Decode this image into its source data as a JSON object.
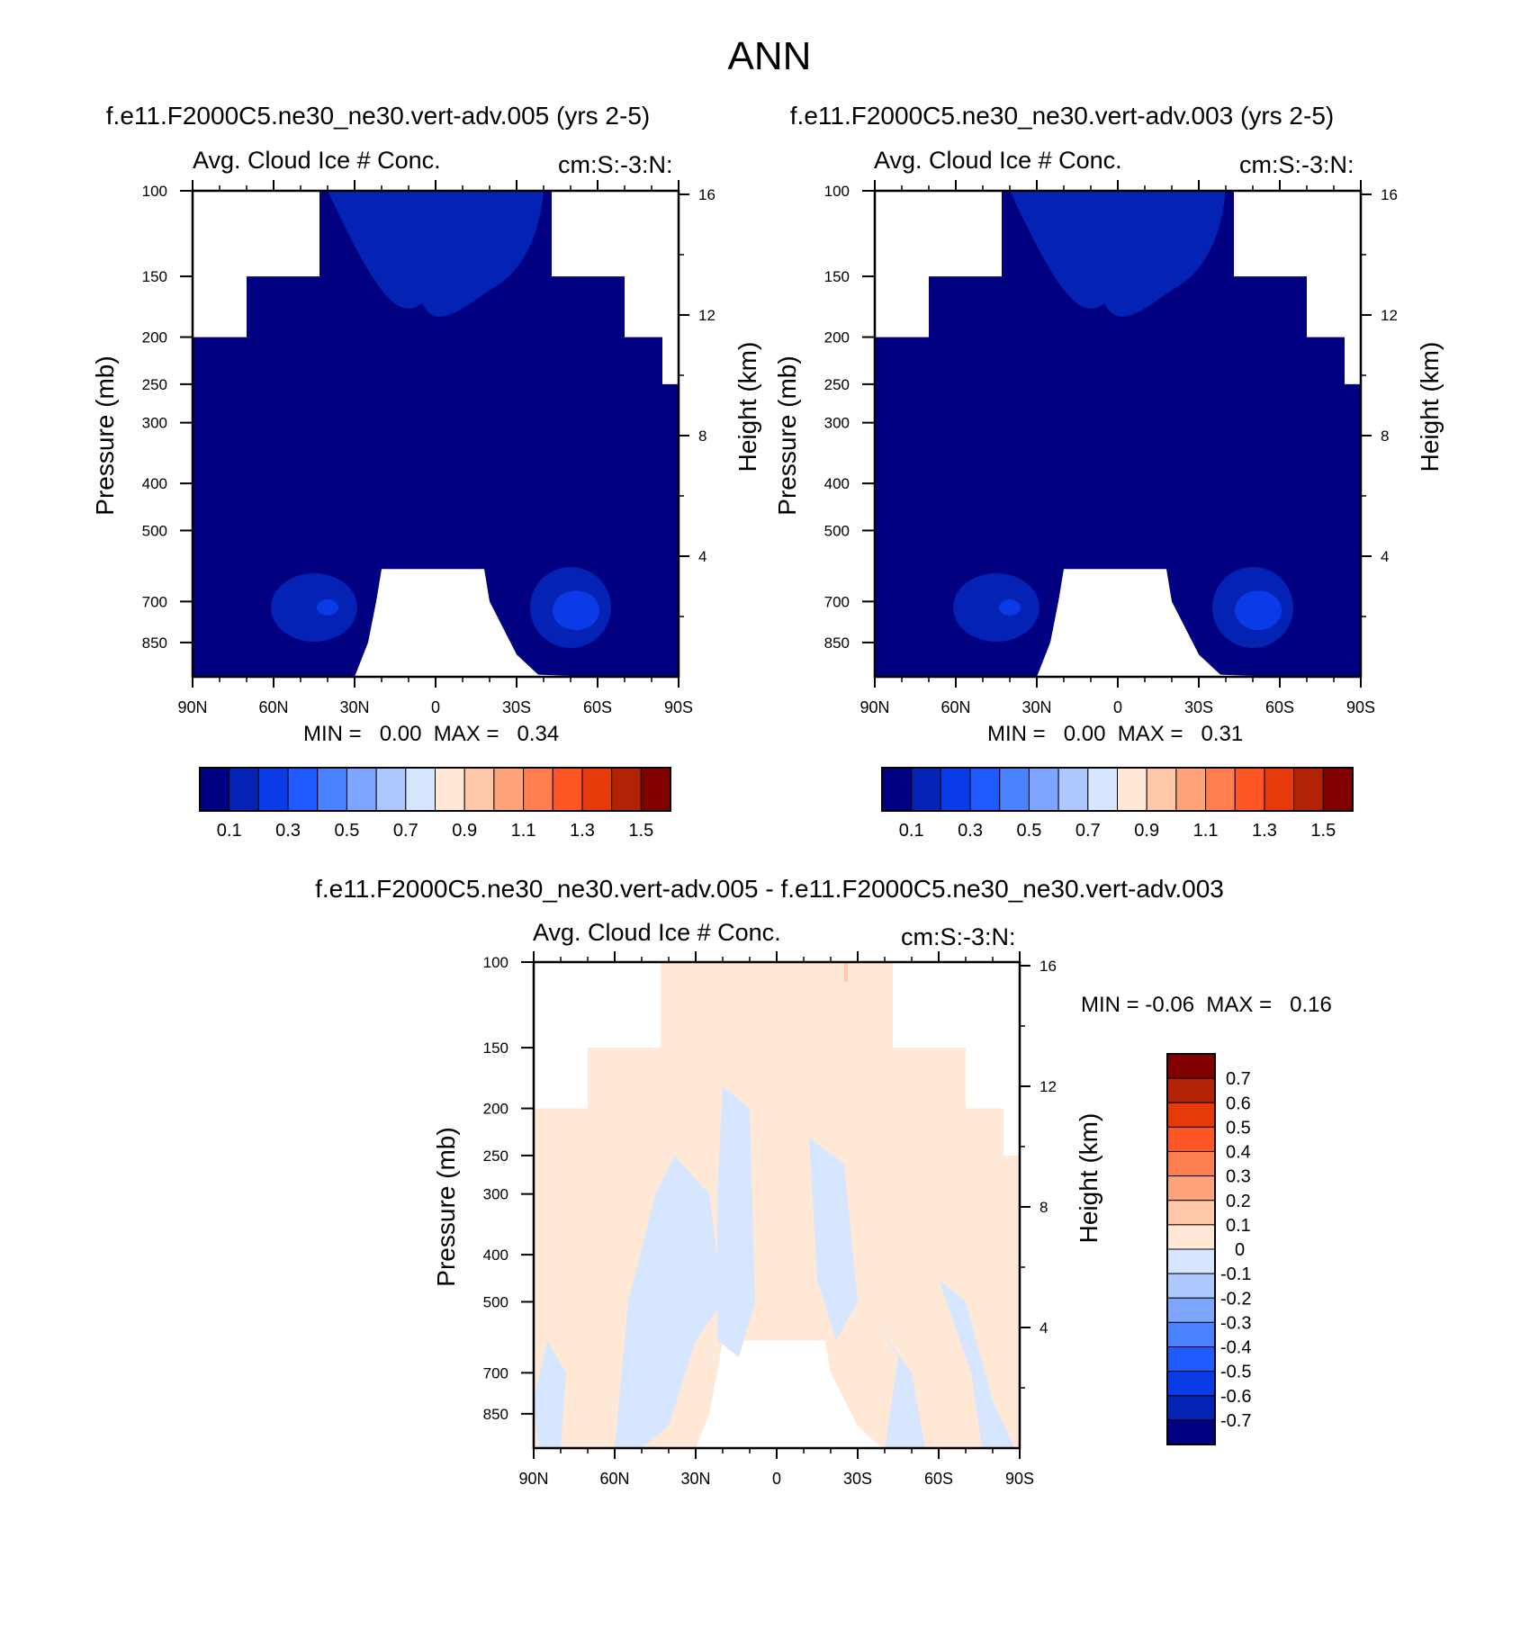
{
  "main_title": "ANN",
  "chart_data": [
    {
      "type": "heatmap",
      "id": "left",
      "title": "f.e11.F2000C5.ne30_ne30.vert-adv.005 (yrs 2-5)",
      "subtitle_left": "Avg. Cloud Ice # Conc.",
      "subtitle_right": "cm:S:-3:N:",
      "xlabel": "",
      "ylabel_left": "Pressure (mb)",
      "ylabel_right": "Height (km)",
      "x_ticks": [
        "90N",
        "60N",
        "30N",
        "0",
        "30S",
        "60S",
        "90S"
      ],
      "x_range": [
        90,
        -90
      ],
      "y_ticks_left": [
        "100",
        "150",
        "200",
        "250",
        "300",
        "400",
        "500",
        "700",
        "850"
      ],
      "y_ticks_right": [
        "16",
        "12",
        "8",
        "4"
      ],
      "y_range_mb": [
        100,
        1000
      ],
      "min_label": "MIN =",
      "min_value": "0.00",
      "max_label": "MAX =",
      "max_value": "0.34",
      "colorbar_orientation": "horizontal",
      "colorbar_labels": [
        "0.1",
        "0.3",
        "0.5",
        "0.7",
        "0.9",
        "1.1",
        "1.3",
        "1.5"
      ],
      "colorbar_levels": [
        0.1,
        0.2,
        0.3,
        0.4,
        0.5,
        0.6,
        0.7,
        0.8,
        0.9,
        1.0,
        1.1,
        1.2,
        1.3,
        1.4,
        1.5
      ],
      "colors": [
        "#000080",
        "#0422b4",
        "#0a3be6",
        "#1e5aff",
        "#4a82ff",
        "#7ea6ff",
        "#adc8ff",
        "#d6e6ff",
        "#ffe8d6",
        "#ffc8aa",
        "#ffa47a",
        "#ff7e50",
        "#ff5626",
        "#e63a0a",
        "#b42206",
        "#800000"
      ],
      "values_note": "field mostly 0.00-0.10 (darkest level); 0.1-0.2 near 100-180 mb tropics and 600-850 mb midlatitudes",
      "cells": [
        {
          "lat": [
            90,
            0
          ],
          "p": [
            200,
            1000
          ],
          "level": 0
        },
        {
          "lat": [
            30,
            -30
          ],
          "p": [
            100,
            180
          ],
          "level": 1
        },
        {
          "lat": [
            50,
            35
          ],
          "p": [
            600,
            850
          ],
          "level": 1
        },
        {
          "lat": [
            -40,
            -60
          ],
          "p": [
            600,
            850
          ],
          "level": 2
        }
      ]
    },
    {
      "type": "heatmap",
      "id": "right",
      "title": "f.e11.F2000C5.ne30_ne30.vert-adv.003 (yrs 2-5)",
      "subtitle_left": "Avg. Cloud Ice # Conc.",
      "subtitle_right": "cm:S:-3:N:",
      "xlabel": "",
      "ylabel_left": "Pressure (mb)",
      "ylabel_right": "Height (km)",
      "x_ticks": [
        "90N",
        "60N",
        "30N",
        "0",
        "30S",
        "60S",
        "90S"
      ],
      "x_range": [
        90,
        -90
      ],
      "y_ticks_left": [
        "100",
        "150",
        "200",
        "250",
        "300",
        "400",
        "500",
        "700",
        "850"
      ],
      "y_ticks_right": [
        "16",
        "12",
        "8",
        "4"
      ],
      "y_range_mb": [
        100,
        1000
      ],
      "min_label": "MIN =",
      "min_value": "0.00",
      "max_label": "MAX =",
      "max_value": "0.31",
      "colorbar_orientation": "horizontal",
      "colorbar_labels": [
        "0.1",
        "0.3",
        "0.5",
        "0.7",
        "0.9",
        "1.1",
        "1.3",
        "1.5"
      ],
      "colorbar_levels": [
        0.1,
        0.2,
        0.3,
        0.4,
        0.5,
        0.6,
        0.7,
        0.8,
        0.9,
        1.0,
        1.1,
        1.2,
        1.3,
        1.4,
        1.5
      ],
      "colors": [
        "#000080",
        "#0422b4",
        "#0a3be6",
        "#1e5aff",
        "#4a82ff",
        "#7ea6ff",
        "#adc8ff",
        "#d6e6ff",
        "#ffe8d6",
        "#ffc8aa",
        "#ffa47a",
        "#ff7e50",
        "#ff5626",
        "#e63a0a",
        "#b42206",
        "#800000"
      ],
      "values_note": "field mostly 0.00-0.10 (darkest level); 0.1-0.2 near 100-180 mb tropics and 600-850 mb midlatitudes"
    },
    {
      "type": "heatmap",
      "id": "diff",
      "title": "f.e11.F2000C5.ne30_ne30.vert-adv.005 - f.e11.F2000C5.ne30_ne30.vert-adv.003",
      "subtitle_left": "Avg. Cloud Ice # Conc.",
      "subtitle_right": "cm:S:-3:N:",
      "xlabel": "",
      "ylabel_left": "Pressure (mb)",
      "ylabel_right": "Height (km)",
      "x_ticks": [
        "90N",
        "60N",
        "30N",
        "0",
        "30S",
        "60S",
        "90S"
      ],
      "x_range": [
        90,
        -90
      ],
      "y_ticks_left": [
        "100",
        "150",
        "200",
        "250",
        "300",
        "400",
        "500",
        "700",
        "850"
      ],
      "y_ticks_right": [
        "16",
        "12",
        "8",
        "4"
      ],
      "y_range_mb": [
        100,
        1000
      ],
      "min_label": "MIN =",
      "min_value": "-0.06",
      "max_label": "MAX =",
      "max_value": "0.16",
      "colorbar_orientation": "vertical",
      "colorbar_labels": [
        "0.7",
        "0.6",
        "0.5",
        "0.4",
        "0.3",
        "0.2",
        "0.1",
        "0",
        "-0.1",
        "-0.2",
        "-0.3",
        "-0.4",
        "-0.5",
        "-0.6",
        "-0.7"
      ],
      "colorbar_levels": [
        0.7,
        0.6,
        0.5,
        0.4,
        0.3,
        0.2,
        0.1,
        0,
        -0.1,
        -0.2,
        -0.3,
        -0.4,
        -0.5,
        -0.6,
        -0.7
      ],
      "colors": [
        "#800000",
        "#b42206",
        "#e63a0a",
        "#ff5626",
        "#ff7e50",
        "#ffa47a",
        "#ffc8aa",
        "#ffe8d6",
        "#d6e6ff",
        "#adc8ff",
        "#7ea6ff",
        "#4a82ff",
        "#1e5aff",
        "#0a3be6",
        "#0422b4",
        "#000080"
      ],
      "values_note": "differences mostly between -0.1 and 0.1"
    }
  ]
}
